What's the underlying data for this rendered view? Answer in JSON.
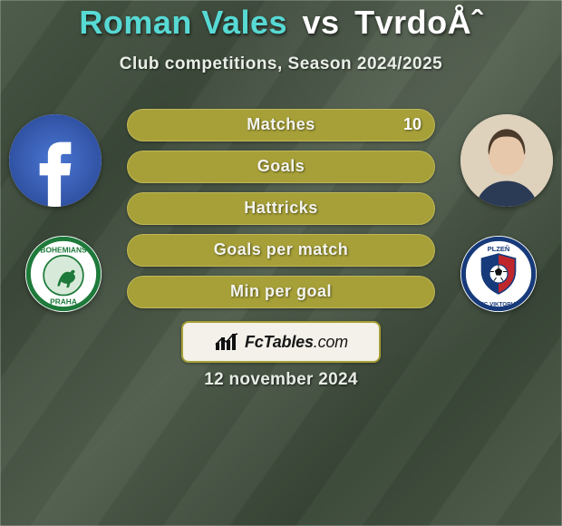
{
  "colors": {
    "player1_name": "#57d9d4",
    "vs_text": "#ffffff",
    "player2_name": "#ffffff",
    "subtitle": "#e9efe6",
    "row_fill": "#a7a038",
    "row_border": "#bfb85a",
    "row_label_neutral": "#f3f4ee",
    "value_p1": "#53d1cc",
    "value_p2": "#ffffff",
    "pill_bg": "#f4f1ea",
    "pill_border": "#a7a038",
    "date_text": "#e7ece4"
  },
  "header": {
    "player1": "Roman Vales",
    "vs": "vs",
    "player2": "TvrdoÅˆ",
    "subtitle": "Club competitions, Season 2024/2025"
  },
  "rows": [
    {
      "label": "Matches",
      "left": "",
      "right": "10"
    },
    {
      "label": "Goals",
      "left": "",
      "right": ""
    },
    {
      "label": "Hattricks",
      "left": "",
      "right": ""
    },
    {
      "label": "Goals per match",
      "left": "",
      "right": ""
    },
    {
      "label": "Min per goal",
      "left": "",
      "right": ""
    }
  ],
  "site": {
    "name": "FcTables",
    "tld": ".com"
  },
  "date": "12 november 2024",
  "players": {
    "left": {
      "name": "Roman Vales",
      "club": "Bohemians Praha"
    },
    "right": {
      "name": "TvrdoÅˆ",
      "club": "FC Viktoria Plzeň"
    }
  }
}
